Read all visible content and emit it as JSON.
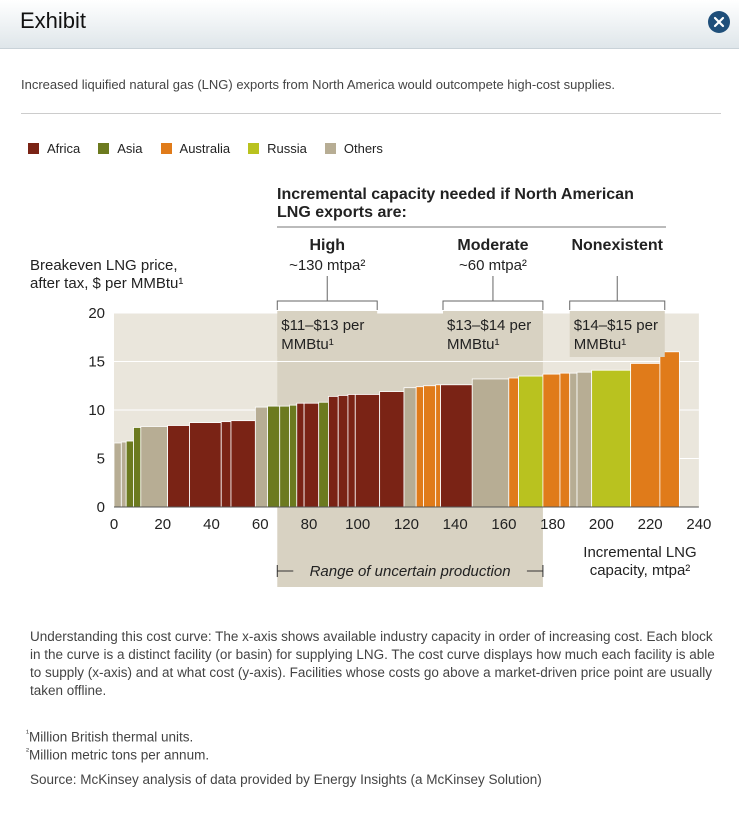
{
  "header": {
    "title": "Exhibit"
  },
  "subtitle": "Increased liquified natural gas (LNG) exports from North America would outcompete high-cost supplies.",
  "legend": [
    {
      "label": "Africa",
      "color": "#7a2315"
    },
    {
      "label": "Asia",
      "color": "#6c7a1f"
    },
    {
      "label": "Australia",
      "color": "#e07b1a"
    },
    {
      "label": "Russia",
      "color": "#b9c21f"
    },
    {
      "label": "Others",
      "color": "#b7ad94"
    }
  ],
  "chart_data": {
    "type": "bar",
    "xlabel_lines": [
      "Incremental LNG",
      "capacity, mtpa²"
    ],
    "ylabel_lines": [
      "Breakeven LNG price,",
      "after tax, $ per MMBtu¹"
    ],
    "xlim": [
      0,
      240
    ],
    "ylim": [
      0,
      20
    ],
    "x_ticks": [
      0,
      20,
      40,
      60,
      80,
      100,
      120,
      140,
      160,
      180,
      200,
      220,
      240
    ],
    "y_ticks": [
      0,
      5,
      10,
      15,
      20
    ],
    "blocks": [
      {
        "x0": 0,
        "x1": 3,
        "y": 6.6,
        "region": "Others"
      },
      {
        "x0": 3,
        "x1": 5,
        "y": 6.7,
        "region": "Others"
      },
      {
        "x0": 5,
        "x1": 8,
        "y": 6.8,
        "region": "Asia"
      },
      {
        "x0": 8,
        "x1": 11,
        "y": 8.2,
        "region": "Asia"
      },
      {
        "x0": 11,
        "x1": 22,
        "y": 8.3,
        "region": "Others"
      },
      {
        "x0": 22,
        "x1": 31,
        "y": 8.4,
        "region": "Africa"
      },
      {
        "x0": 31,
        "x1": 44,
        "y": 8.7,
        "region": "Africa"
      },
      {
        "x0": 44,
        "x1": 48,
        "y": 8.8,
        "region": "Africa"
      },
      {
        "x0": 48,
        "x1": 58,
        "y": 8.9,
        "region": "Africa"
      },
      {
        "x0": 58,
        "x1": 63,
        "y": 10.3,
        "region": "Others"
      },
      {
        "x0": 63,
        "x1": 68,
        "y": 10.4,
        "region": "Asia"
      },
      {
        "x0": 68,
        "x1": 72,
        "y": 10.4,
        "region": "Asia"
      },
      {
        "x0": 72,
        "x1": 75,
        "y": 10.5,
        "region": "Asia"
      },
      {
        "x0": 75,
        "x1": 78,
        "y": 10.7,
        "region": "Africa"
      },
      {
        "x0": 78,
        "x1": 84,
        "y": 10.7,
        "region": "Africa"
      },
      {
        "x0": 84,
        "x1": 88,
        "y": 10.8,
        "region": "Asia"
      },
      {
        "x0": 88,
        "x1": 92,
        "y": 11.4,
        "region": "Africa"
      },
      {
        "x0": 92,
        "x1": 96,
        "y": 11.5,
        "region": "Africa"
      },
      {
        "x0": 96,
        "x1": 99,
        "y": 11.6,
        "region": "Africa"
      },
      {
        "x0": 99,
        "x1": 109,
        "y": 11.6,
        "region": "Africa"
      },
      {
        "x0": 109,
        "x1": 119,
        "y": 11.9,
        "region": "Africa"
      },
      {
        "x0": 119,
        "x1": 124,
        "y": 12.3,
        "region": "Others"
      },
      {
        "x0": 124,
        "x1": 127,
        "y": 12.4,
        "region": "Australia"
      },
      {
        "x0": 127,
        "x1": 132,
        "y": 12.5,
        "region": "Australia"
      },
      {
        "x0": 132,
        "x1": 134,
        "y": 12.6,
        "region": "Australia"
      },
      {
        "x0": 134,
        "x1": 147,
        "y": 12.6,
        "region": "Africa"
      },
      {
        "x0": 147,
        "x1": 162,
        "y": 13.2,
        "region": "Others"
      },
      {
        "x0": 162,
        "x1": 166,
        "y": 13.3,
        "region": "Australia"
      },
      {
        "x0": 166,
        "x1": 176,
        "y": 13.5,
        "region": "Russia"
      },
      {
        "x0": 176,
        "x1": 183,
        "y": 13.7,
        "region": "Australia"
      },
      {
        "x0": 183,
        "x1": 187,
        "y": 13.8,
        "region": "Australia"
      },
      {
        "x0": 187,
        "x1": 190,
        "y": 13.8,
        "region": "Others"
      },
      {
        "x0": 190,
        "x1": 196,
        "y": 13.9,
        "region": "Others"
      },
      {
        "x0": 196,
        "x1": 212,
        "y": 14.1,
        "region": "Russia"
      },
      {
        "x0": 212,
        "x1": 224,
        "y": 14.8,
        "region": "Australia"
      },
      {
        "x0": 224,
        "x1": 232,
        "y": 16.0,
        "region": "Australia"
      }
    ],
    "scenario_header_lines": [
      "Incremental capacity needed if North American",
      "LNG exports are:"
    ],
    "scenarios": [
      {
        "name": "High",
        "amount": "~130 mtpa²",
        "x0": 67,
        "x1": 108,
        "price_lines": [
          "$11–$13 per",
          "MMBtu¹"
        ]
      },
      {
        "name": "Moderate",
        "amount": "~60 mtpa²",
        "x0": 135,
        "x1": 176,
        "price_lines": [
          "$13–$14 per",
          "MMBtu¹"
        ]
      },
      {
        "name": "Nonexistent",
        "amount": "",
        "x0": 187,
        "x1": 226,
        "price_lines": [
          "$14–$15 per",
          "MMBtu¹"
        ]
      }
    ],
    "uncertain_range": {
      "label": "Range of uncertain production",
      "x0": 67,
      "x1": 176
    }
  },
  "description": "Understanding this cost curve: The x-axis shows available industry capacity in order of increasing cost. Each block in the curve is a distinct facility (or basin) for supplying LNG. The cost curve displays how much each facility is able to supply (x-axis) and at what cost (y-axis). Facilities whose costs go above a market-driven price point are usually taken offline.",
  "footnotes": {
    "fn1_mark": "¹",
    "fn1": "Million British thermal units.",
    "fn2_mark": "²",
    "fn2": "Million metric tons per annum.",
    "source": "Source: McKinsey analysis of data provided by Energy Insights (a McKinsey Solution)"
  }
}
